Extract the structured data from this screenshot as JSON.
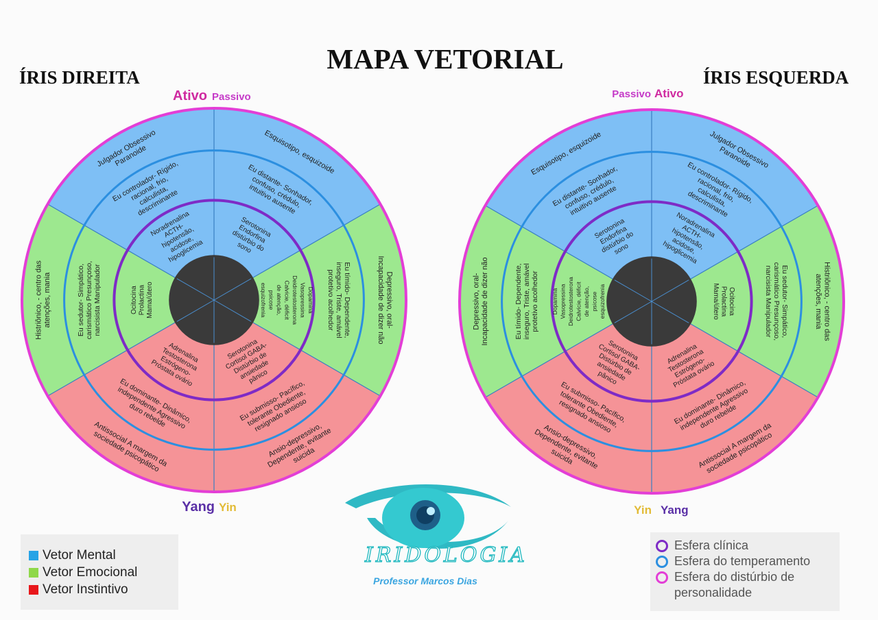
{
  "header": {
    "title": "MAPA VETORIAL",
    "right_iris_label": "ÍRIS DIREITA",
    "left_iris_label": "ÍRIS ESQUERDA"
  },
  "colors": {
    "mental": "#7ebff5",
    "emotional": "#9de88f",
    "instinctive": "#f59397",
    "center": "#3a3a3a",
    "ring_personality": "#e33ed6",
    "ring_temperament": "#2c8fe0",
    "ring_clinical": "#7e2bc6",
    "ativo": "#cf2aa0",
    "passivo": "#c53ac8",
    "yang": "#5a2fa6",
    "yin": "#e2bb36"
  },
  "iris_right": {
    "top_label_strong": "Ativo",
    "top_label_weak": "Passivo",
    "bottom_label_strong": "Yang",
    "bottom_label_weak": "Yin",
    "sectors": [
      {
        "name": "mental-active",
        "outer": "Julgador Obsessivo Paranoide",
        "middle": "Eu controlador- Rígido, racional, frio, calculista, descriminante",
        "inner": "Noradrenalina ACTH- hipotensão, acidose, hipoglicemia"
      },
      {
        "name": "mental-passive",
        "outer": "Esquisotipo, esquizoide",
        "middle": "Eu distante- Sonhador, confuso, crédulo, intuitivo ausente",
        "inner": "Serotonina Endorfina distúrbio do sono"
      },
      {
        "name": "emotional-passive",
        "outer": "Depressivo, oral- Incapacidade de dizer não",
        "middle": "Eu tímido- Dependente, inseguro, Triste, amável protetivo acolhedor",
        "inner": "Dopamina Vasopressina Deidrotestosterona Calvície, déficit de atenção, psicose esquizofrenia"
      },
      {
        "name": "instinctive-passive",
        "outer": "Ansio-depressivo, Dependente, evitante suicida",
        "middle": "Eu submisso- Pacífico, tolerante Obediente, resignado ansioso",
        "inner": "Serotonina Cortisol GABA- Distúrbio de ansiedade pânico"
      },
      {
        "name": "instinctive-active",
        "outer": "Antissocial A margem da sociedade psicopático",
        "middle": "Eu dominante- Dinâmico, independente Agressivo duro rebelde",
        "inner": "Adrenalina Testosterona Estrógeno- Próstata ovário"
      },
      {
        "name": "emotional-active",
        "outer": "Histriônico, - centro das atenções, mania",
        "middle": "Eu sedutor- Simpático, carismático Presunçoso, narcisista Manipulador",
        "inner": "Ocitocina Prolactina Mama/útero"
      }
    ]
  },
  "iris_left": {
    "top_label_weak": "Passivo",
    "top_label_strong": "Ativo",
    "bottom_label_weak": "Yin",
    "bottom_label_strong": "Yang",
    "sectors": [
      {
        "name": "mental-passive",
        "outer": "Esquisotipo, esquizoide",
        "middle": "Eu distante- Sonhador, confuso, crédulo, intuitivo ausente",
        "inner": "Serotonina Endorfina distúrbio do sono"
      },
      {
        "name": "mental-active",
        "outer": "Julgador Obsessivo Paranoide",
        "middle": "Eu controlador- Rígido, racional, frio, calculista, descriminante",
        "inner": "Noradrenalina ACTH- hipotensão, acidose, hipoglicemia"
      },
      {
        "name": "emotional-active",
        "outer": "Histriônico, - centro das atenções, mania",
        "middle": "Eu sedutor- Simpático, carismático Presunçoso, narcisista Manipulador",
        "inner": "Ocitocina Prolactina Mama/útero"
      },
      {
        "name": "instinctive-active",
        "outer": "Antissocial A margem da sociedade psicopático",
        "middle": "Eu dominante- Dinâmico, independente Agressivo duro rebelde",
        "inner": "Adrenalina Testosterona Estrógeno- Próstata ovário"
      },
      {
        "name": "instinctive-passive",
        "outer": "Ansio-depressivo, Dependente, evitante suicida",
        "middle": "Eu submisso- Pacífico, tolerante Obediente, resignado ansioso",
        "inner": "Serotonina Cortisol GABA- Distúrbio de ansiedade pânico"
      },
      {
        "name": "emotional-passive",
        "outer": "Depressivo, oral- Incapacidade de dizer não",
        "middle": "Eu tímido- Dependente, inseguro, Triste, amável protetivo acolhedor",
        "inner": "Dopamina Vasopressina Deidrotestosterona Calvície, déficit de atenção, psicose esquizofrenia"
      }
    ]
  },
  "legend_vectors": [
    {
      "label": "Vetor Mental",
      "color": "#27a3e6"
    },
    {
      "label": "Vetor Emocional",
      "color": "#8fd84a"
    },
    {
      "label": "Vetor Instintivo",
      "color": "#e8171b"
    }
  ],
  "legend_spheres": [
    {
      "label": "Esfera clínica",
      "color": "#7e2bc6"
    },
    {
      "label": "Esfera do temperamento",
      "color": "#2c8fe0"
    },
    {
      "label": "Esfera do distúrbio de personalidade",
      "color": "#e33ed6"
    }
  ],
  "brand": {
    "word": "IRIDOLOGIA",
    "subtitle": "Professor Marcos Dias"
  }
}
